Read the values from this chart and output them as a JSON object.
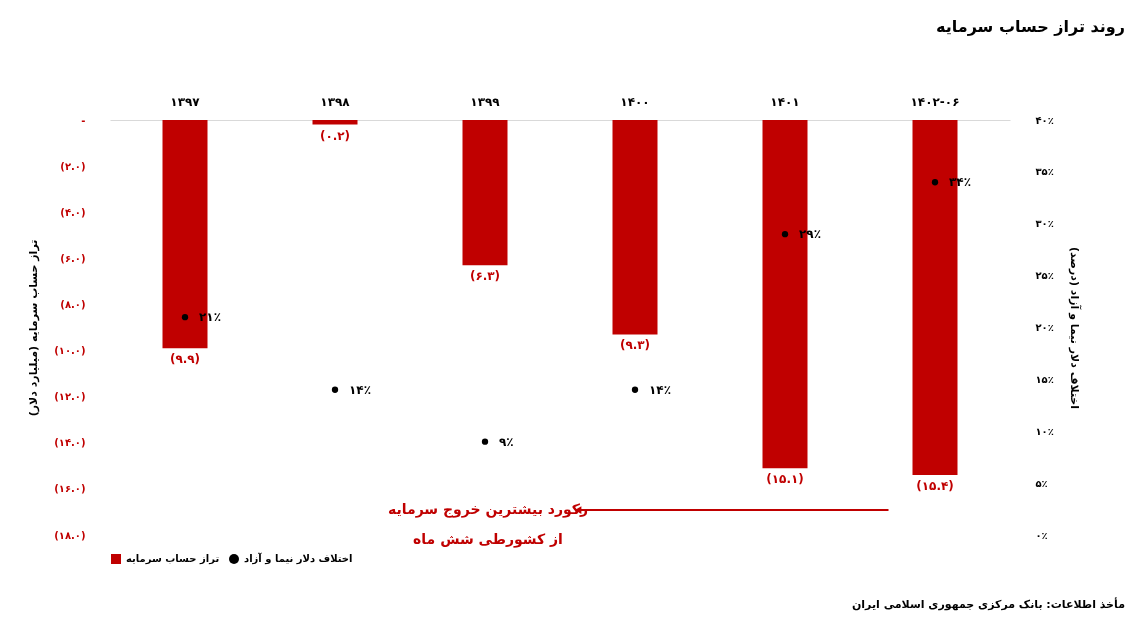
{
  "chart_data": {
    "type": "bar",
    "title": "روند تراز حساب سرمایه",
    "categories": [
      "۱۳۹۷",
      "۱۳۹۸",
      "۱۳۹۹",
      "۱۴۰۰",
      "۱۴۰۱",
      "۱۴۰۲-۰۶"
    ],
    "series": [
      {
        "name": "تراز حساب سرمایه",
        "color": "#c00000",
        "values": [
          -9.9,
          -0.2,
          -6.3,
          -9.3,
          -15.1,
          -15.4
        ],
        "value_labels": [
          "(۹.۹)",
          "(۰.۲)",
          "(۶.۳)",
          "(۹.۳)",
          "(۱۵.۱)",
          "(۱۵.۴)"
        ]
      },
      {
        "name": "اختلاف دلار نیما و آزاد",
        "type": "scatter",
        "axis": "y2",
        "color": "#000000",
        "values": [
          21,
          14,
          9,
          14,
          29,
          34
        ],
        "value_labels": [
          "۲۱٪",
          "۱۴٪",
          "۹٪",
          "۱۴٪",
          "۲۹٪",
          "۳۴٪"
        ]
      }
    ],
    "ylabel": "تراز حساب سرمایه (میلیارد دلار)",
    "y2label": "اختلاف دلار نیما و آزاد (درصد)",
    "ylim": [
      -18,
      0
    ],
    "yticks": [
      {
        "value": 0,
        "label": "-"
      },
      {
        "value": -2,
        "label": "(۲.۰)"
      },
      {
        "value": -4,
        "label": "(۴.۰)"
      },
      {
        "value": -6,
        "label": "(۶.۰)"
      },
      {
        "value": -8,
        "label": "(۸.۰)"
      },
      {
        "value": -10,
        "label": "(۱۰.۰)"
      },
      {
        "value": -12,
        "label": "(۱۲.۰)"
      },
      {
        "value": -14,
        "label": "(۱۴.۰)"
      },
      {
        "value": -16,
        "label": "(۱۶.۰)"
      },
      {
        "value": -18,
        "label": "(۱۸.۰)"
      }
    ],
    "y2lim": [
      0,
      40
    ],
    "y2ticks": [
      {
        "value": 0,
        "label": "۰٪"
      },
      {
        "value": 5,
        "label": "۵٪"
      },
      {
        "value": 10,
        "label": "۱۰٪"
      },
      {
        "value": 15,
        "label": "۱۵٪"
      },
      {
        "value": 20,
        "label": "۲۰٪"
      },
      {
        "value": 25,
        "label": "۲۵٪"
      },
      {
        "value": 30,
        "label": "۳۰٪"
      },
      {
        "value": 35,
        "label": "۳۵٪"
      },
      {
        "value": 40,
        "label": "۴۰٪"
      }
    ],
    "legend": "bottom",
    "marker": "circle",
    "annotations": [
      "رکورد بیشترین خروج سرمایه\nاز کشورطی شش ماه",
      "مأخذ اطلاعات: بانک مرکزی جمهوری اسلامی ایران"
    ]
  }
}
